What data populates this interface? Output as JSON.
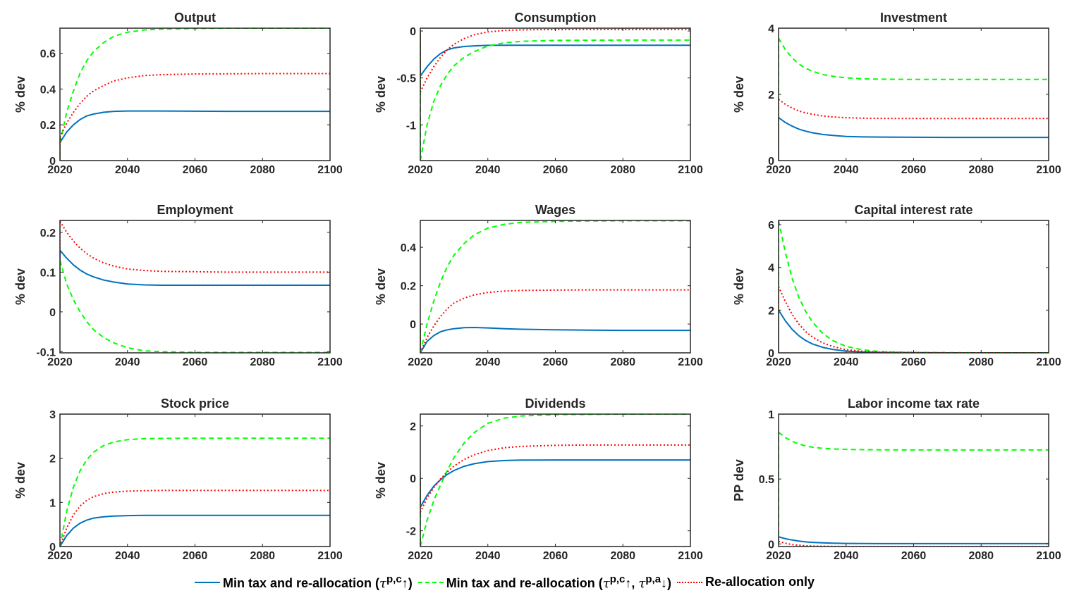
{
  "chart_data": {
    "type": "line",
    "x": [
      2020,
      2022,
      2024,
      2026,
      2028,
      2030,
      2033,
      2036,
      2040,
      2045,
      2050,
      2060,
      2070,
      2080,
      2090,
      2100
    ],
    "xlim": [
      2020,
      2100
    ],
    "xticks": [
      2020,
      2040,
      2060,
      2080,
      2100
    ],
    "series_styles": [
      {
        "key": "min_tax",
        "color": "#0072BD",
        "dash": "solid"
      },
      {
        "key": "min_tax_a",
        "color": "#00FF00",
        "dash": "dashed"
      },
      {
        "key": "realloc",
        "color": "#FF0000",
        "dash": "dotted"
      }
    ],
    "legend": {
      "placement": "bottom",
      "entries": [
        {
          "key": "min_tax",
          "text": "Min tax and re-allocation (",
          "sup1": "p,c",
          "arrow1": "↑",
          "sup2": "",
          "arrow2": "",
          "close": ")"
        },
        {
          "key": "min_tax_a",
          "text": "Min tax and re-allocation (",
          "sup1": "p,c",
          "arrow1": "↑, ",
          "sup2": "p,a",
          "arrow2": "↓",
          "close": ")"
        },
        {
          "key": "realloc",
          "text": "Re-allocation only",
          "sup1": "",
          "arrow1": "",
          "sup2": "",
          "arrow2": "",
          "close": ""
        }
      ],
      "tau": "τ"
    },
    "panels": [
      {
        "title": "Output",
        "ylabel": "% dev",
        "ylim": [
          0,
          0.74
        ],
        "yticks": [
          0,
          0.2,
          0.4,
          0.6
        ],
        "ytick_labels": [
          "0",
          "0.2",
          "0.4",
          "0.6"
        ],
        "series": {
          "min_tax": [
            0.1,
            0.16,
            0.2,
            0.23,
            0.25,
            0.26,
            0.27,
            0.275,
            0.277,
            0.277,
            0.277,
            0.276,
            0.275,
            0.275,
            0.275,
            0.275
          ],
          "min_tax_a": [
            0.1,
            0.27,
            0.39,
            0.49,
            0.56,
            0.61,
            0.66,
            0.695,
            0.717,
            0.73,
            0.735,
            0.738,
            0.74,
            0.74,
            0.74,
            0.74
          ],
          "realloc": [
            0.13,
            0.21,
            0.27,
            0.32,
            0.36,
            0.39,
            0.42,
            0.445,
            0.462,
            0.475,
            0.48,
            0.484,
            0.485,
            0.486,
            0.486,
            0.486
          ]
        }
      },
      {
        "title": "Consumption",
        "ylabel": "% dev",
        "ylim": [
          -1.38,
          0.03
        ],
        "yticks": [
          -1,
          -0.5,
          0
        ],
        "ytick_labels": [
          "-1",
          "-0.5",
          "0"
        ],
        "series": {
          "min_tax": [
            -0.48,
            -0.38,
            -0.3,
            -0.24,
            -0.2,
            -0.18,
            -0.165,
            -0.158,
            -0.153,
            -0.152,
            -0.152,
            -0.152,
            -0.152,
            -0.152,
            -0.152,
            -0.152
          ],
          "min_tax_a": [
            -1.38,
            -1.0,
            -0.75,
            -0.58,
            -0.46,
            -0.37,
            -0.28,
            -0.22,
            -0.16,
            -0.125,
            -0.11,
            -0.1,
            -0.098,
            -0.097,
            -0.097,
            -0.097
          ],
          "realloc": [
            -0.65,
            -0.5,
            -0.38,
            -0.28,
            -0.2,
            -0.14,
            -0.08,
            -0.04,
            -0.01,
            0.005,
            0.012,
            0.016,
            0.017,
            0.017,
            0.017,
            0.017
          ]
        }
      },
      {
        "title": "Investment",
        "ylabel": "% dev",
        "ylim": [
          0,
          4
        ],
        "yticks": [
          0,
          2,
          4
        ],
        "ytick_labels": [
          "0",
          "2",
          "4"
        ],
        "series": {
          "min_tax": [
            1.3,
            1.15,
            1.04,
            0.95,
            0.89,
            0.84,
            0.79,
            0.76,
            0.73,
            0.715,
            0.71,
            0.705,
            0.7,
            0.7,
            0.7,
            0.7
          ],
          "min_tax_a": [
            3.7,
            3.35,
            3.1,
            2.92,
            2.79,
            2.7,
            2.6,
            2.55,
            2.5,
            2.47,
            2.46,
            2.45,
            2.45,
            2.45,
            2.45,
            2.45
          ],
          "realloc": [
            1.85,
            1.7,
            1.59,
            1.5,
            1.44,
            1.4,
            1.35,
            1.32,
            1.295,
            1.28,
            1.275,
            1.27,
            1.27,
            1.27,
            1.27,
            1.27
          ]
        }
      },
      {
        "title": "Employment",
        "ylabel": "% dev",
        "ylim": [
          -0.103,
          0.23
        ],
        "yticks": [
          -0.1,
          0,
          0.1,
          0.2
        ],
        "ytick_labels": [
          "-0.1",
          "0",
          "0.1",
          "0.2"
        ],
        "series": {
          "min_tax": [
            0.155,
            0.135,
            0.118,
            0.105,
            0.095,
            0.088,
            0.08,
            0.075,
            0.07,
            0.068,
            0.067,
            0.067,
            0.067,
            0.067,
            0.067,
            0.067
          ],
          "min_tax_a": [
            0.13,
            0.07,
            0.03,
            0.0,
            -0.025,
            -0.045,
            -0.065,
            -0.078,
            -0.09,
            -0.098,
            -0.1,
            -0.102,
            -0.102,
            -0.102,
            -0.102,
            -0.102
          ],
          "realloc": [
            0.228,
            0.2,
            0.178,
            0.16,
            0.146,
            0.135,
            0.123,
            0.115,
            0.108,
            0.104,
            0.102,
            0.101,
            0.1,
            0.1,
            0.1,
            0.1
          ]
        }
      },
      {
        "title": "Wages",
        "ylabel": "% dev",
        "ylim": [
          -0.15,
          0.54
        ],
        "yticks": [
          0,
          0.2,
          0.4
        ],
        "ytick_labels": [
          "0",
          "0.2",
          "0.4"
        ],
        "series": {
          "min_tax": [
            -0.15,
            -0.09,
            -0.06,
            -0.04,
            -0.03,
            -0.024,
            -0.019,
            -0.018,
            -0.02,
            -0.024,
            -0.027,
            -0.03,
            -0.032,
            -0.033,
            -0.033,
            -0.033
          ],
          "min_tax_a": [
            -0.15,
            0.0,
            0.12,
            0.22,
            0.3,
            0.36,
            0.42,
            0.465,
            0.5,
            0.52,
            0.53,
            0.535,
            0.537,
            0.538,
            0.538,
            0.538
          ],
          "realloc": [
            -0.15,
            -0.07,
            -0.01,
            0.04,
            0.08,
            0.11,
            0.135,
            0.152,
            0.165,
            0.172,
            0.175,
            0.177,
            0.178,
            0.178,
            0.178,
            0.178
          ]
        }
      },
      {
        "title": "Capital interest rate",
        "ylabel": "% dev",
        "ylim": [
          0,
          6.2
        ],
        "yticks": [
          0,
          2,
          4,
          6
        ],
        "ytick_labels": [
          "0",
          "2",
          "4",
          "6"
        ],
        "series": {
          "min_tax": [
            2.0,
            1.5,
            1.1,
            0.8,
            0.58,
            0.42,
            0.26,
            0.16,
            0.08,
            0.04,
            0.02,
            0.01,
            0.0,
            0.0,
            0.0,
            0.0
          ],
          "min_tax_a": [
            6.2,
            4.7,
            3.5,
            2.6,
            1.95,
            1.45,
            0.92,
            0.58,
            0.3,
            0.14,
            0.06,
            0.02,
            0.01,
            0.0,
            0.0,
            0.0
          ],
          "realloc": [
            3.1,
            2.4,
            1.8,
            1.35,
            1.0,
            0.75,
            0.47,
            0.3,
            0.15,
            0.07,
            0.03,
            0.01,
            0.0,
            0.0,
            0.0,
            0.0
          ]
        }
      },
      {
        "title": "Stock price",
        "ylabel": "% dev",
        "ylim": [
          0,
          3
        ],
        "yticks": [
          0,
          1,
          2,
          3
        ],
        "ytick_labels": [
          "0",
          "1",
          "2",
          "3"
        ],
        "series": {
          "min_tax": [
            0.0,
            0.25,
            0.42,
            0.53,
            0.6,
            0.645,
            0.675,
            0.69,
            0.7,
            0.705,
            0.705,
            0.705,
            0.705,
            0.705,
            0.705,
            0.705
          ],
          "min_tax_a": [
            0.0,
            0.8,
            1.35,
            1.72,
            1.97,
            2.14,
            2.29,
            2.37,
            2.42,
            2.445,
            2.45,
            2.455,
            2.455,
            2.455,
            2.455,
            2.455
          ],
          "realloc": [
            0.0,
            0.42,
            0.72,
            0.92,
            1.05,
            1.13,
            1.2,
            1.235,
            1.255,
            1.265,
            1.27,
            1.27,
            1.27,
            1.27,
            1.27,
            1.27
          ]
        }
      },
      {
        "title": "Dividends",
        "ylabel": "% dev",
        "ylim": [
          -2.6,
          2.45
        ],
        "yticks": [
          -2,
          0,
          2
        ],
        "ytick_labels": [
          "-2",
          "0",
          "2"
        ],
        "series": {
          "min_tax": [
            -1.1,
            -0.65,
            -0.3,
            -0.05,
            0.15,
            0.3,
            0.46,
            0.56,
            0.64,
            0.68,
            0.695,
            0.7,
            0.7,
            0.7,
            0.7,
            0.7
          ],
          "min_tax_a": [
            -2.6,
            -1.6,
            -0.85,
            -0.25,
            0.3,
            0.8,
            1.35,
            1.75,
            2.1,
            2.3,
            2.38,
            2.43,
            2.44,
            2.45,
            2.45,
            2.45
          ],
          "realloc": [
            -1.3,
            -0.75,
            -0.35,
            -0.02,
            0.25,
            0.47,
            0.72,
            0.9,
            1.06,
            1.17,
            1.22,
            1.26,
            1.27,
            1.27,
            1.27,
            1.27
          ]
        }
      },
      {
        "title": "Labor income tax rate",
        "ylabel": "PP dev",
        "ylim": [
          -0.02,
          1.0
        ],
        "yticks": [
          0,
          0.5,
          1
        ],
        "ytick_labels": [
          "0",
          "0.5",
          "1"
        ],
        "series": {
          "min_tax": [
            0.055,
            0.04,
            0.03,
            0.022,
            0.016,
            0.012,
            0.008,
            0.006,
            0.004,
            0.003,
            0.002,
            0.002,
            0.002,
            0.002,
            0.002,
            0.002
          ],
          "min_tax_a": [
            0.86,
            0.82,
            0.79,
            0.77,
            0.755,
            0.745,
            0.737,
            0.732,
            0.728,
            0.726,
            0.725,
            0.724,
            0.724,
            0.724,
            0.724,
            0.724
          ],
          "realloc": [
            0.02,
            0.005,
            -0.005,
            -0.01,
            -0.014,
            -0.016,
            -0.018,
            -0.019,
            -0.02,
            -0.02,
            -0.02,
            -0.02,
            -0.02,
            -0.02,
            -0.02,
            -0.02
          ]
        }
      }
    ]
  }
}
